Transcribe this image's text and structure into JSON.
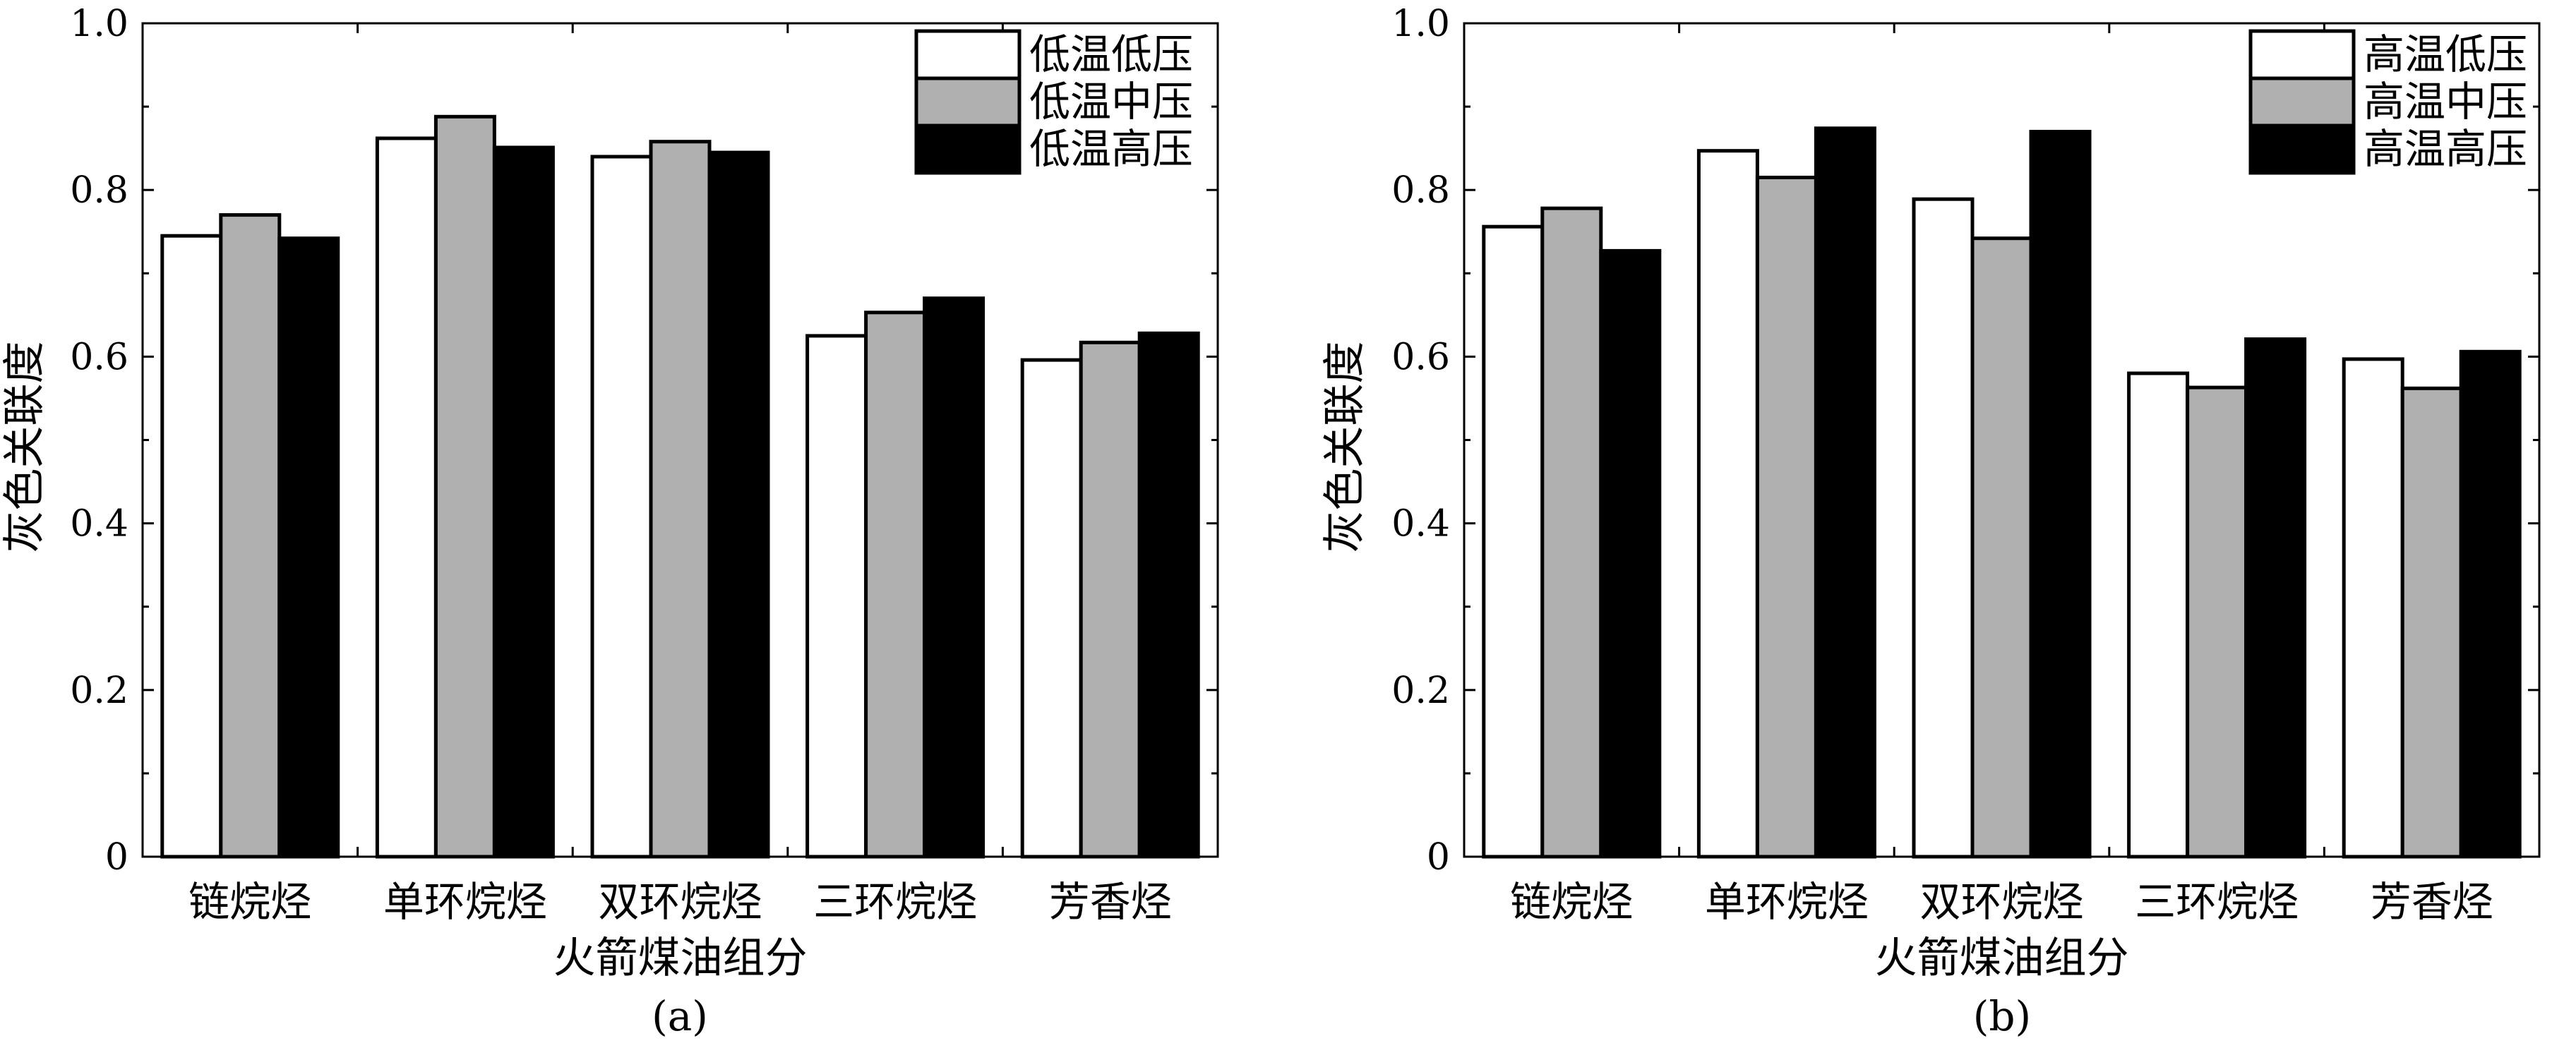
{
  "chart_data": [
    {
      "type": "bar",
      "panel_label": "(a)",
      "categories": [
        "链烷烃",
        "单环烷烃",
        "双环烷烃",
        "三环烷烃",
        "芳香烃"
      ],
      "series": [
        {
          "name": "低温低压",
          "color": "#ffffff",
          "values": [
            0.745,
            0.862,
            0.84,
            0.625,
            0.596
          ]
        },
        {
          "name": "低温中压",
          "color": "#b0b0b0",
          "values": [
            0.77,
            0.888,
            0.858,
            0.653,
            0.617
          ]
        },
        {
          "name": "低温高压",
          "color": "#000000",
          "values": [
            0.742,
            0.851,
            0.845,
            0.67,
            0.628
          ]
        }
      ],
      "xlabel": "火箭煤油组分",
      "ylabel": "灰色关联度",
      "ylim": [
        0,
        1.0
      ],
      "yticks": [
        "0",
        "0.2",
        "0.4",
        "0.6",
        "0.8",
        "1.0"
      ],
      "legend_position": "top-right",
      "grid": false
    },
    {
      "type": "bar",
      "panel_label": "(b)",
      "categories": [
        "链烷烃",
        "单环烷烃",
        "双环烷烃",
        "三环烷烃",
        "芳香烃"
      ],
      "series": [
        {
          "name": "高温低压",
          "color": "#ffffff",
          "values": [
            0.756,
            0.847,
            0.789,
            0.58,
            0.597
          ]
        },
        {
          "name": "高温中压",
          "color": "#b0b0b0",
          "values": [
            0.778,
            0.815,
            0.742,
            0.563,
            0.562
          ]
        },
        {
          "name": "高温高压",
          "color": "#000000",
          "values": [
            0.727,
            0.874,
            0.87,
            0.621,
            0.606
          ]
        }
      ],
      "xlabel": "火箭煤油组分",
      "ylabel": "灰色关联度",
      "ylim": [
        0,
        1.0
      ],
      "yticks": [
        "0",
        "0.2",
        "0.4",
        "0.6",
        "0.8",
        "1.0"
      ],
      "legend_position": "top-right",
      "grid": false
    }
  ]
}
